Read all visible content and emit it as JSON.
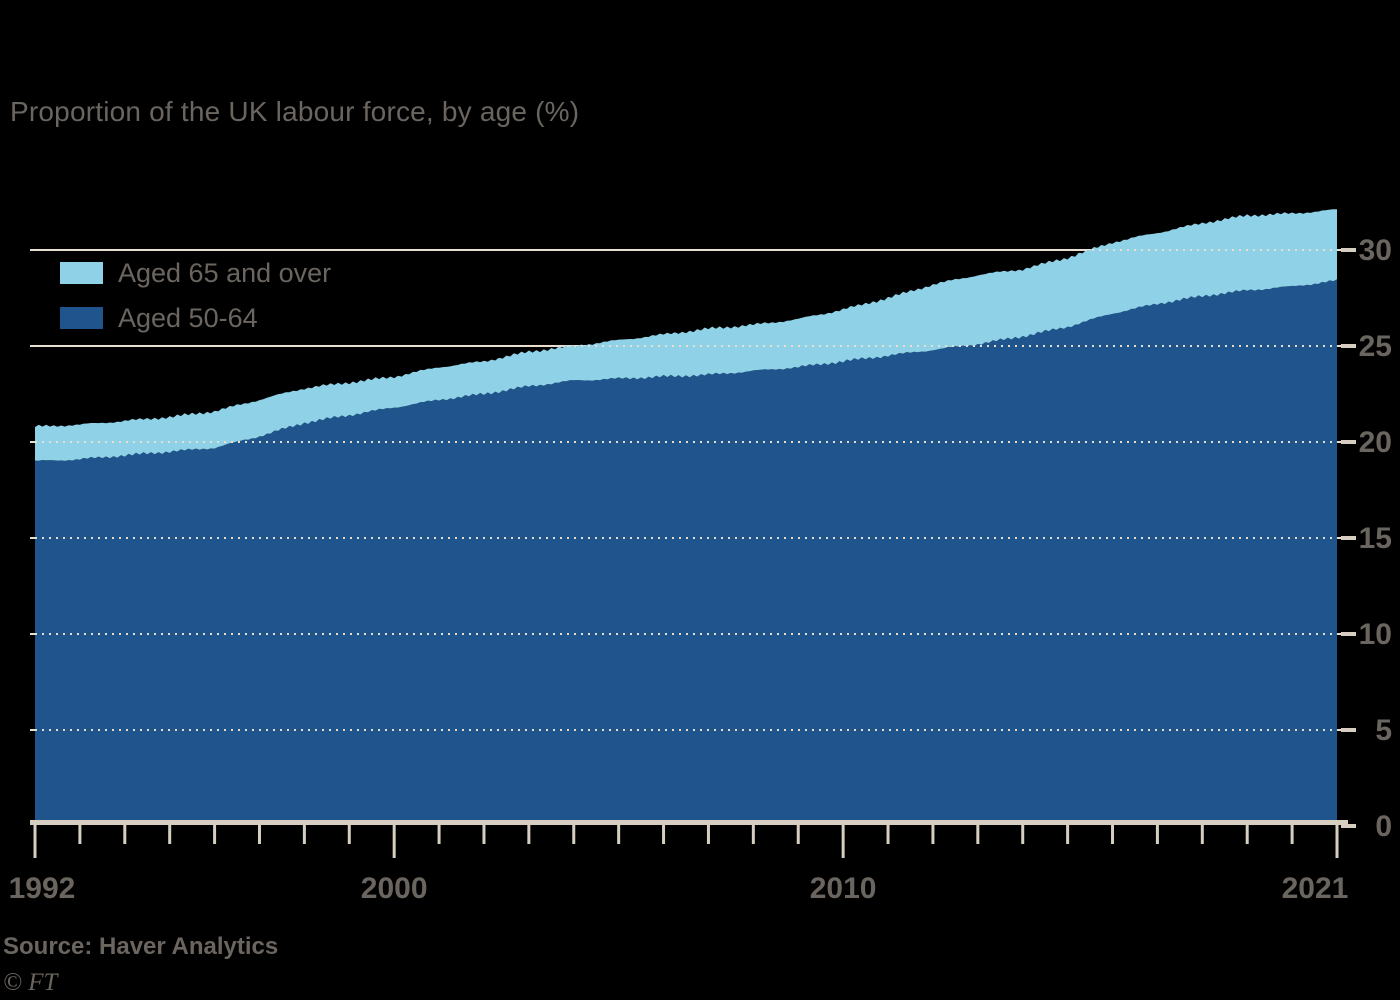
{
  "title": "Proportion of the UK labour force, by age (%)",
  "source": "Source: Haver Analytics",
  "footer_logo": "© FT",
  "colors": {
    "background": "#000000",
    "text_gray": "#6b6560",
    "gridline": "#e7ded0",
    "axis": "#d5cec1",
    "dark_blue": "#20548c",
    "light_blue": "#8fd2e8"
  },
  "legend": {
    "items": [
      {
        "label": "Aged 65 and over",
        "color": "#8fd2e8"
      },
      {
        "label": "Aged 50-64",
        "color": "#20548c"
      }
    ]
  },
  "chart_data": {
    "type": "area",
    "stacked": true,
    "title": "Proportion of the UK labour force, by age (%)",
    "xlabel": "",
    "ylabel": "%",
    "x": [
      1992,
      1993,
      1994,
      1995,
      1996,
      1997,
      1998,
      1999,
      2000,
      2001,
      2002,
      2003,
      2004,
      2005,
      2006,
      2007,
      2008,
      2009,
      2010,
      2011,
      2012,
      2013,
      2014,
      2015,
      2016,
      2017,
      2018,
      2019,
      2020,
      2021
    ],
    "series": [
      {
        "name": "Aged 50-64",
        "color": "#20548c",
        "values": [
          19.0,
          19.1,
          19.3,
          19.5,
          19.7,
          20.3,
          21.0,
          21.4,
          21.8,
          22.2,
          22.5,
          22.9,
          23.2,
          23.3,
          23.4,
          23.5,
          23.7,
          23.9,
          24.2,
          24.5,
          24.8,
          25.1,
          25.5,
          26.0,
          26.7,
          27.2,
          27.6,
          27.9,
          28.1,
          28.4
        ]
      },
      {
        "name": "Aged 65 and over",
        "color": "#8fd2e8",
        "values": [
          1.8,
          1.8,
          1.8,
          1.8,
          1.9,
          1.9,
          1.8,
          1.7,
          1.6,
          1.7,
          1.7,
          1.8,
          1.8,
          2.0,
          2.2,
          2.4,
          2.4,
          2.5,
          2.7,
          3.0,
          3.4,
          3.6,
          3.5,
          3.6,
          3.7,
          3.7,
          3.8,
          3.9,
          3.8,
          3.7
        ]
      }
    ],
    "ylim": [
      0,
      32.5
    ],
    "yticks": [
      0,
      5,
      10,
      15,
      20,
      25,
      30
    ],
    "ytick_labels": [
      "0",
      "5",
      "10",
      "15",
      "20",
      "25",
      "30"
    ],
    "ytick_side": "right",
    "xticks_every_year": true,
    "xticks_labeled": [
      1992,
      2000,
      2010,
      2021
    ],
    "xtick_labels": [
      "1992",
      "2000",
      "2010",
      "2021"
    ],
    "grid": "horizontal, solid on background, dotted over the filled areas",
    "legend_position": "top-left inside plot"
  }
}
